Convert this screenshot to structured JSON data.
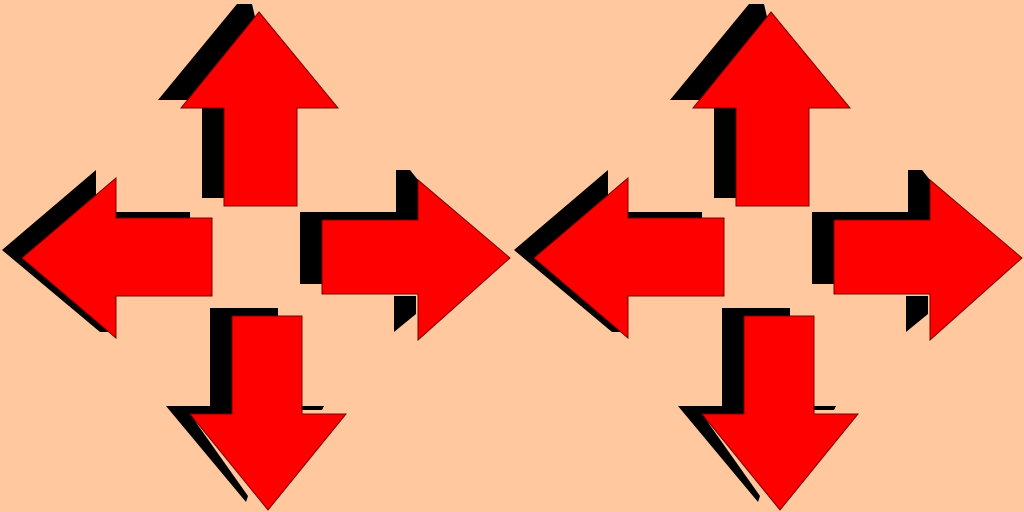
{
  "background_color": "#FFC89E",
  "arrow_color": "#FF0000",
  "shadow_color": "#000000",
  "groups": [
    {
      "name": "arrow-cluster-left",
      "arrows": [
        {
          "direction": "up",
          "icon": "arrow-up-icon"
        },
        {
          "direction": "left",
          "icon": "arrow-left-icon"
        },
        {
          "direction": "right",
          "icon": "arrow-right-icon"
        },
        {
          "direction": "down",
          "icon": "arrow-down-icon"
        }
      ]
    },
    {
      "name": "arrow-cluster-right",
      "arrows": [
        {
          "direction": "up",
          "icon": "arrow-up-icon"
        },
        {
          "direction": "left",
          "icon": "arrow-left-icon"
        },
        {
          "direction": "right",
          "icon": "arrow-right-icon"
        },
        {
          "direction": "down",
          "icon": "arrow-down-icon"
        }
      ]
    }
  ]
}
